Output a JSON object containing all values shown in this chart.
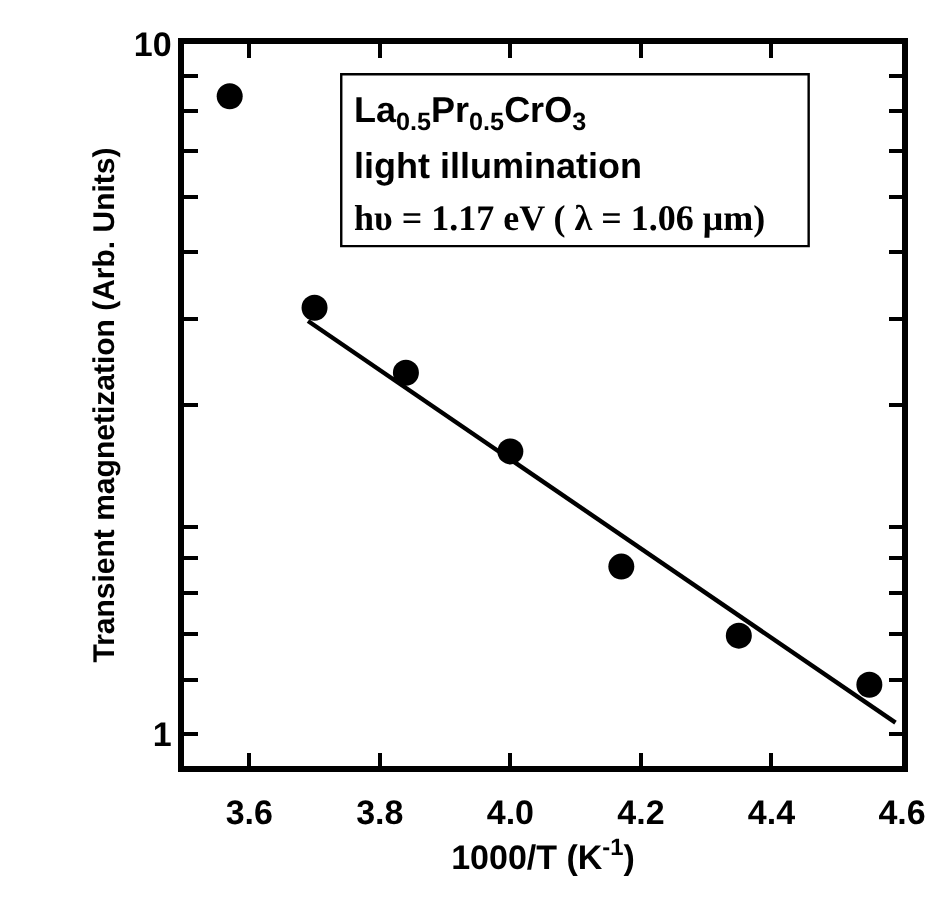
{
  "chart_data": {
    "type": "scatter",
    "xlabel": "1000/T (K$^{-1}$)",
    "ylabel": "Transient magnetization (Arb. Units)",
    "annotations": [
      "La$_{0.5}$Pr$_{0.5}$CrO$_{3}$",
      "light illumination",
      "hυ = 1.17 eV ( λ = 1.06 μm)"
    ],
    "log": true,
    "xlim": [
      3.5,
      4.6
    ],
    "xticks": [
      3.6,
      3.8,
      {
        "value": 4,
        "label": "4.0"
      },
      4.2,
      4.4,
      4.6
    ],
    "ylim": [
      0.9,
      10
    ],
    "yticks": [
      1,
      {
        "value": 1.2,
        "label": null
      },
      {
        "value": 1.4,
        "label": null
      },
      {
        "value": 1.6,
        "label": null
      },
      {
        "value": 1.8,
        "label": null
      },
      {
        "value": 2,
        "label": null
      },
      {
        "value": 3,
        "label": null
      },
      {
        "value": 4,
        "label": null
      },
      {
        "value": 5,
        "label": null
      },
      {
        "value": 6,
        "label": null
      },
      {
        "value": 7,
        "label": null
      },
      {
        "value": 8,
        "label": null
      },
      {
        "value": 9,
        "label": null
      },
      10
    ],
    "series": [
      {
        "marker": "circle",
        "color": "#000000",
        "x": [
          3.57,
          3.7,
          3.84,
          4.0,
          4.17,
          4.35,
          4.55
        ],
        "values": [
          8.4,
          4.15,
          3.34,
          2.57,
          1.75,
          1.39,
          1.18
        ]
      },
      {
        "type": "line",
        "color": "#000000",
        "x": [
          3.69,
          4.59
        ],
        "values": [
          3.97,
          1.04
        ]
      }
    ]
  }
}
